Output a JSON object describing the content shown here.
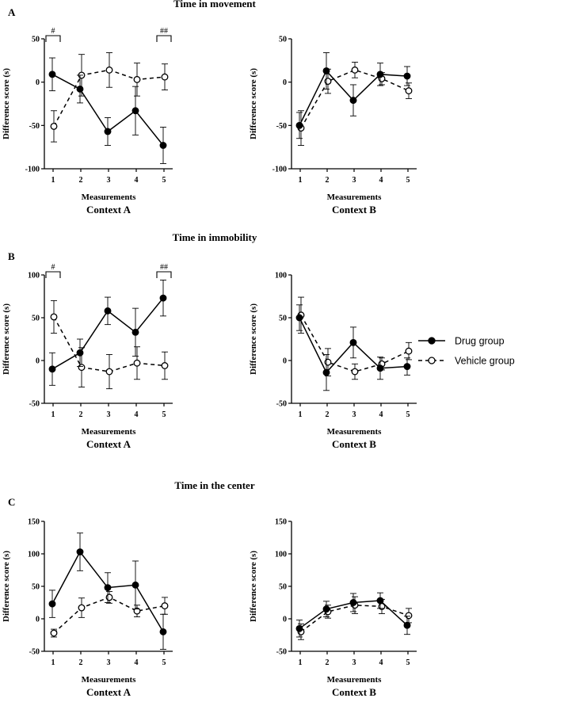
{
  "legend": [
    {
      "label": "Drug group",
      "marker": "filled-circle",
      "line": "solid"
    },
    {
      "label": "Vehicle group",
      "marker": "open-circle",
      "line": "dashed"
    }
  ],
  "chart_data": [
    {
      "type": "line",
      "section_title": "Time in movement",
      "panel_letter": "A",
      "title": "Context A",
      "xlabel": "Measurements",
      "ylabel": "Difference score (s)",
      "x": [
        1,
        2,
        3,
        4,
        5
      ],
      "ylim": [
        -100,
        50
      ],
      "yticks": [
        -100,
        -50,
        0,
        50
      ],
      "significance": [
        {
          "x": 1,
          "label": "#"
        },
        {
          "x": 5,
          "label": "##"
        }
      ],
      "series": [
        {
          "name": "Drug group",
          "values": [
            9,
            -8,
            -57,
            -33,
            -73
          ],
          "err": [
            19,
            16,
            16,
            28,
            21
          ]
        },
        {
          "name": "Vehicle group",
          "values": [
            -51,
            8,
            14,
            3,
            6
          ],
          "err": [
            18,
            24,
            20,
            19,
            15
          ]
        }
      ]
    },
    {
      "type": "line",
      "section_title": "",
      "panel_letter": "",
      "title": "Context B",
      "xlabel": "Measurements",
      "ylabel": "Difference score (s)",
      "x": [
        1,
        2,
        3,
        4,
        5
      ],
      "ylim": [
        -100,
        50
      ],
      "yticks": [
        -100,
        -50,
        0,
        50
      ],
      "significance": [],
      "series": [
        {
          "name": "Drug group",
          "values": [
            -50,
            13,
            -21,
            9,
            7
          ],
          "err": [
            15,
            21,
            18,
            13,
            11
          ]
        },
        {
          "name": "Vehicle group",
          "values": [
            -53,
            1,
            14,
            4,
            -10
          ],
          "err": [
            20,
            14,
            9,
            7,
            9
          ]
        }
      ]
    },
    {
      "type": "line",
      "section_title": "Time in immobility",
      "panel_letter": "B",
      "title": "Context A",
      "xlabel": "Measurements",
      "ylabel": "Difference score (s)",
      "x": [
        1,
        2,
        3,
        4,
        5
      ],
      "ylim": [
        -50,
        100
      ],
      "yticks": [
        -50,
        0,
        50,
        100
      ],
      "significance": [
        {
          "x": 1,
          "label": "#"
        },
        {
          "x": 5,
          "label": "##"
        }
      ],
      "series": [
        {
          "name": "Drug group",
          "values": [
            -10,
            9,
            58,
            33,
            73
          ],
          "err": [
            19,
            16,
            16,
            28,
            21
          ]
        },
        {
          "name": "Vehicle group",
          "values": [
            51,
            -8,
            -13,
            -3,
            -6
          ],
          "err": [
            19,
            23,
            20,
            19,
            16
          ]
        }
      ]
    },
    {
      "type": "line",
      "section_title": "",
      "panel_letter": "",
      "title": "Context B",
      "xlabel": "Measurements",
      "ylabel": "Difference score (s)",
      "x": [
        1,
        2,
        3,
        4,
        5
      ],
      "ylim": [
        -50,
        100
      ],
      "yticks": [
        -50,
        0,
        50,
        100
      ],
      "significance": [],
      "series": [
        {
          "name": "Drug group",
          "values": [
            50,
            -14,
            21,
            -9,
            -7
          ],
          "err": [
            15,
            21,
            18,
            13,
            10
          ]
        },
        {
          "name": "Vehicle group",
          "values": [
            53,
            -2,
            -13,
            -4,
            11
          ],
          "err": [
            21,
            16,
            9,
            7,
            10
          ]
        }
      ]
    },
    {
      "type": "line",
      "section_title": "Time in the center",
      "panel_letter": "C",
      "title": "Context A",
      "xlabel": "Measurements",
      "ylabel": "Difference score (s)",
      "x": [
        1,
        2,
        3,
        4,
        5
      ],
      "ylim": [
        -50,
        150
      ],
      "yticks": [
        -50,
        0,
        50,
        100,
        150
      ],
      "significance": [],
      "series": [
        {
          "name": "Drug group",
          "values": [
            23,
            103,
            48,
            52,
            -20
          ],
          "err": [
            21,
            29,
            23,
            37,
            27
          ]
        },
        {
          "name": "Vehicle group",
          "values": [
            -22,
            17,
            33,
            12,
            20
          ],
          "err": [
            6,
            15,
            9,
            9,
            13
          ]
        }
      ]
    },
    {
      "type": "line",
      "section_title": "",
      "panel_letter": "",
      "title": "Context B",
      "xlabel": "Measurements",
      "ylabel": "Difference score (s)",
      "x": [
        1,
        2,
        3,
        4,
        5
      ],
      "ylim": [
        -50,
        150
      ],
      "yticks": [
        -50,
        0,
        50,
        100,
        150
      ],
      "significance": [],
      "series": [
        {
          "name": "Drug group",
          "values": [
            -15,
            15,
            25,
            28,
            -10
          ],
          "err": [
            13,
            12,
            14,
            12,
            14
          ]
        },
        {
          "name": "Vehicle group",
          "values": [
            -20,
            11,
            21,
            19,
            5
          ],
          "err": [
            12,
            10,
            13,
            11,
            11
          ]
        }
      ]
    }
  ]
}
